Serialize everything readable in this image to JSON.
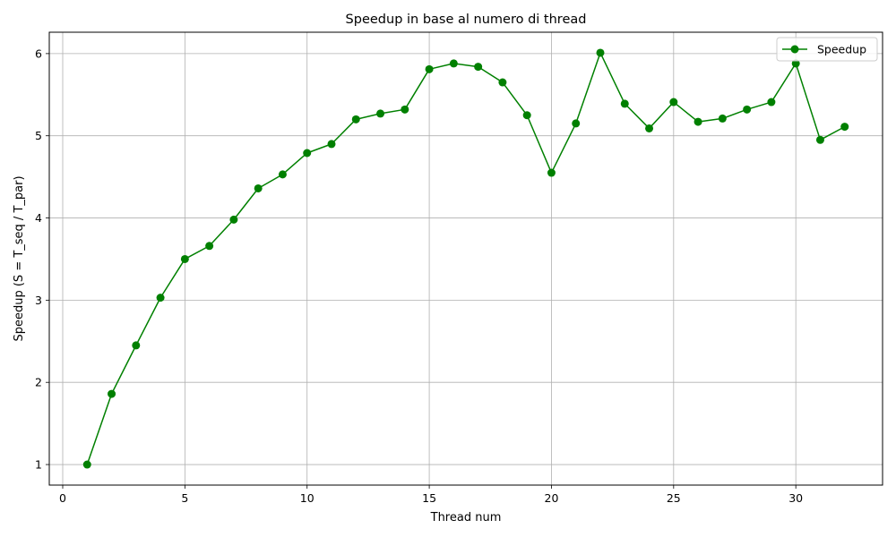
{
  "chart_data": {
    "type": "line",
    "title": "Speedup in base al numero di thread",
    "xlabel": "Thread num",
    "ylabel": "Speedup (S = T_seq / T_par)",
    "xlim": [
      -0.55,
      33.55
    ],
    "ylim": [
      0.75,
      6.26
    ],
    "xticks": [
      0,
      5,
      10,
      15,
      20,
      25,
      30
    ],
    "yticks": [
      1,
      2,
      3,
      4,
      5,
      6
    ],
    "grid": true,
    "legend_position": "top-right",
    "series": [
      {
        "name": "Speedup",
        "color": "#008000",
        "marker": "circle",
        "x": [
          1,
          2,
          3,
          4,
          5,
          6,
          7,
          8,
          9,
          10,
          11,
          12,
          13,
          14,
          15,
          16,
          17,
          18,
          19,
          20,
          21,
          22,
          23,
          24,
          25,
          26,
          27,
          28,
          29,
          30,
          31,
          32
        ],
        "y": [
          1.0,
          1.86,
          2.45,
          3.03,
          3.5,
          3.66,
          3.98,
          4.36,
          4.53,
          4.79,
          4.9,
          5.2,
          5.27,
          5.32,
          5.81,
          5.88,
          5.84,
          5.65,
          5.25,
          4.55,
          5.15,
          6.01,
          5.39,
          5.09,
          5.41,
          5.17,
          5.21,
          5.32,
          5.41,
          5.88,
          4.95,
          5.11
        ]
      }
    ]
  }
}
